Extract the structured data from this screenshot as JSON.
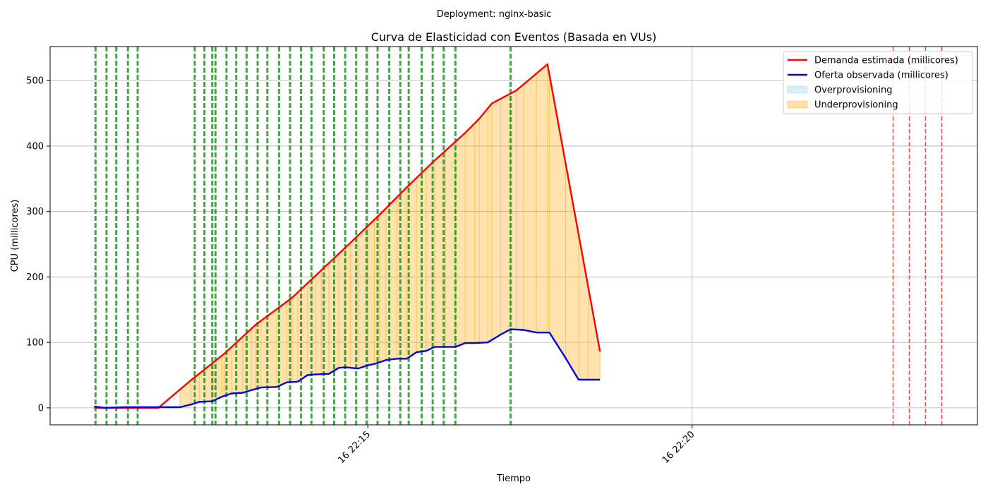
{
  "chart_data": {
    "type": "line",
    "suptitle": "Deployment: nginx-basic",
    "title": "Curva de Elasticidad con Eventos (Basada en VUs)",
    "xlabel": "Tiempo",
    "ylabel": "CPU (millicores)",
    "x_unit": "minutes after 16 22:15",
    "xlim": [
      -4.9,
      9.4
    ],
    "ylim": [
      -26,
      552
    ],
    "x_ticks": [
      {
        "x": 0,
        "label": "16 22:15"
      },
      {
        "x": 5,
        "label": "16 22:20"
      }
    ],
    "y_ticks": [
      0,
      100,
      200,
      300,
      400,
      500
    ],
    "grid": true,
    "legend_position": "top-right",
    "legend": [
      {
        "label": "Demanda estimada (millicores)",
        "type": "line",
        "color": "#ff0000"
      },
      {
        "label": "Oferta observada (millicores)",
        "type": "line",
        "color": "#0000dd"
      },
      {
        "label": "Overprovisioning",
        "type": "patch",
        "color": "#87ceeb"
      },
      {
        "label": "Underprovisioning",
        "type": "patch",
        "color": "#ffa500"
      }
    ],
    "series": [
      {
        "name": "Demanda estimada (millicores)",
        "color": "#ff0000",
        "x": [
          -4.22,
          -3.23,
          -2.73,
          -2.21,
          -1.73,
          -1.17,
          -0.72,
          -0.27,
          0.18,
          0.6,
          1.03,
          1.5,
          1.72,
          1.91,
          2.29,
          2.77,
          3.58
        ],
        "y": [
          0,
          0,
          42,
          83,
          127,
          168,
          210,
          252,
          295,
          337,
          378,
          420,
          442,
          465,
          485,
          525,
          86
        ]
      },
      {
        "name": "Oferta observada (millicores)",
        "color": "#0000dd",
        "x": [
          -4.22,
          -4.06,
          -3.73,
          -3.23,
          -2.9,
          -2.73,
          -2.6,
          -2.4,
          -2.25,
          -2.1,
          -1.93,
          -1.8,
          -1.65,
          -1.4,
          -1.25,
          -1.08,
          -0.93,
          -0.8,
          -0.6,
          -0.45,
          -0.35,
          -0.15,
          0.0,
          0.1,
          0.28,
          0.45,
          0.6,
          0.75,
          0.9,
          1.03,
          1.2,
          1.35,
          1.5,
          1.65,
          1.85,
          2.05,
          2.2,
          2.4,
          2.6,
          2.8,
          3.05,
          3.25,
          3.4,
          3.58
        ],
        "y": [
          2,
          0,
          1,
          1,
          1,
          5,
          9,
          10,
          17,
          22,
          23,
          27,
          31,
          32,
          39,
          40,
          50,
          51,
          52,
          61,
          62,
          60,
          65,
          67,
          73,
          75,
          75,
          85,
          87,
          93,
          93,
          93,
          99,
          99,
          100,
          112,
          120,
          119,
          115,
          115,
          76,
          43,
          43,
          43
        ]
      }
    ],
    "fill_between": [
      {
        "name": "Underprovisioning",
        "between": [
          "Demanda estimada (millicores)",
          "Oferta observada (millicores)"
        ],
        "where": "demand > supply",
        "color": "#ffa500"
      }
    ],
    "event_lines": [
      {
        "color": "#008000",
        "style": "dashed",
        "x": [
          -4.2,
          -4.03,
          -3.88,
          -3.7,
          -3.55,
          -2.67,
          -2.52,
          -2.4,
          -2.35,
          -2.18,
          -2.03,
          -1.87,
          -1.7,
          -1.55,
          -1.37,
          -1.2,
          -1.03,
          -0.87,
          -0.68,
          -0.52,
          -0.35,
          -0.18,
          -0.02,
          0.15,
          0.33,
          0.5,
          0.63,
          0.83,
          1.0,
          1.17,
          1.35,
          2.2
        ]
      },
      {
        "color": "#ff0000",
        "style": "dashed",
        "x": [
          8.1,
          8.35,
          8.6,
          8.85
        ]
      }
    ]
  }
}
